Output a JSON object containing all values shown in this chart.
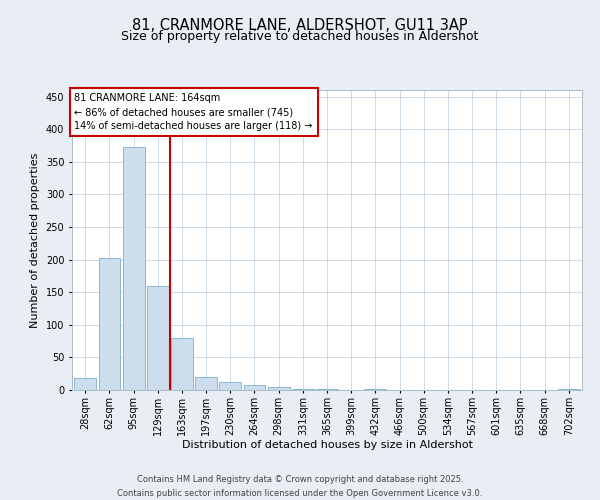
{
  "title": "81, CRANMORE LANE, ALDERSHOT, GU11 3AP",
  "subtitle": "Size of property relative to detached houses in Aldershot",
  "xlabel": "Distribution of detached houses by size in Aldershot",
  "ylabel": "Number of detached properties",
  "categories": [
    "28sqm",
    "62sqm",
    "95sqm",
    "129sqm",
    "163sqm",
    "197sqm",
    "230sqm",
    "264sqm",
    "298sqm",
    "331sqm",
    "365sqm",
    "399sqm",
    "432sqm",
    "466sqm",
    "500sqm",
    "534sqm",
    "567sqm",
    "601sqm",
    "635sqm",
    "668sqm",
    "702sqm"
  ],
  "values": [
    18,
    202,
    372,
    160,
    80,
    20,
    12,
    7,
    4,
    2,
    1,
    0,
    1,
    0,
    0,
    0,
    0,
    0,
    0,
    0,
    2
  ],
  "bar_color": "#ccdded",
  "bar_edge_color": "#7aafc8",
  "highlight_line_index": 4,
  "highlight_line_color": "#cc0000",
  "ylim": [
    0,
    460
  ],
  "yticks": [
    0,
    50,
    100,
    150,
    200,
    250,
    300,
    350,
    400,
    450
  ],
  "annotation_text": "81 CRANMORE LANE: 164sqm\n← 86% of detached houses are smaller (745)\n14% of semi-detached houses are larger (118) →",
  "annotation_box_color": "#cc0000",
  "footnote": "Contains HM Land Registry data © Crown copyright and database right 2025.\nContains public sector information licensed under the Open Government Licence v3.0.",
  "background_color": "#e8eef4",
  "plot_background_color": "#ffffff",
  "grid_color": "#c5d5e5",
  "title_fontsize": 10.5,
  "subtitle_fontsize": 9,
  "label_fontsize": 8,
  "tick_fontsize": 7,
  "footnote_fontsize": 6,
  "annotation_fontsize": 7
}
